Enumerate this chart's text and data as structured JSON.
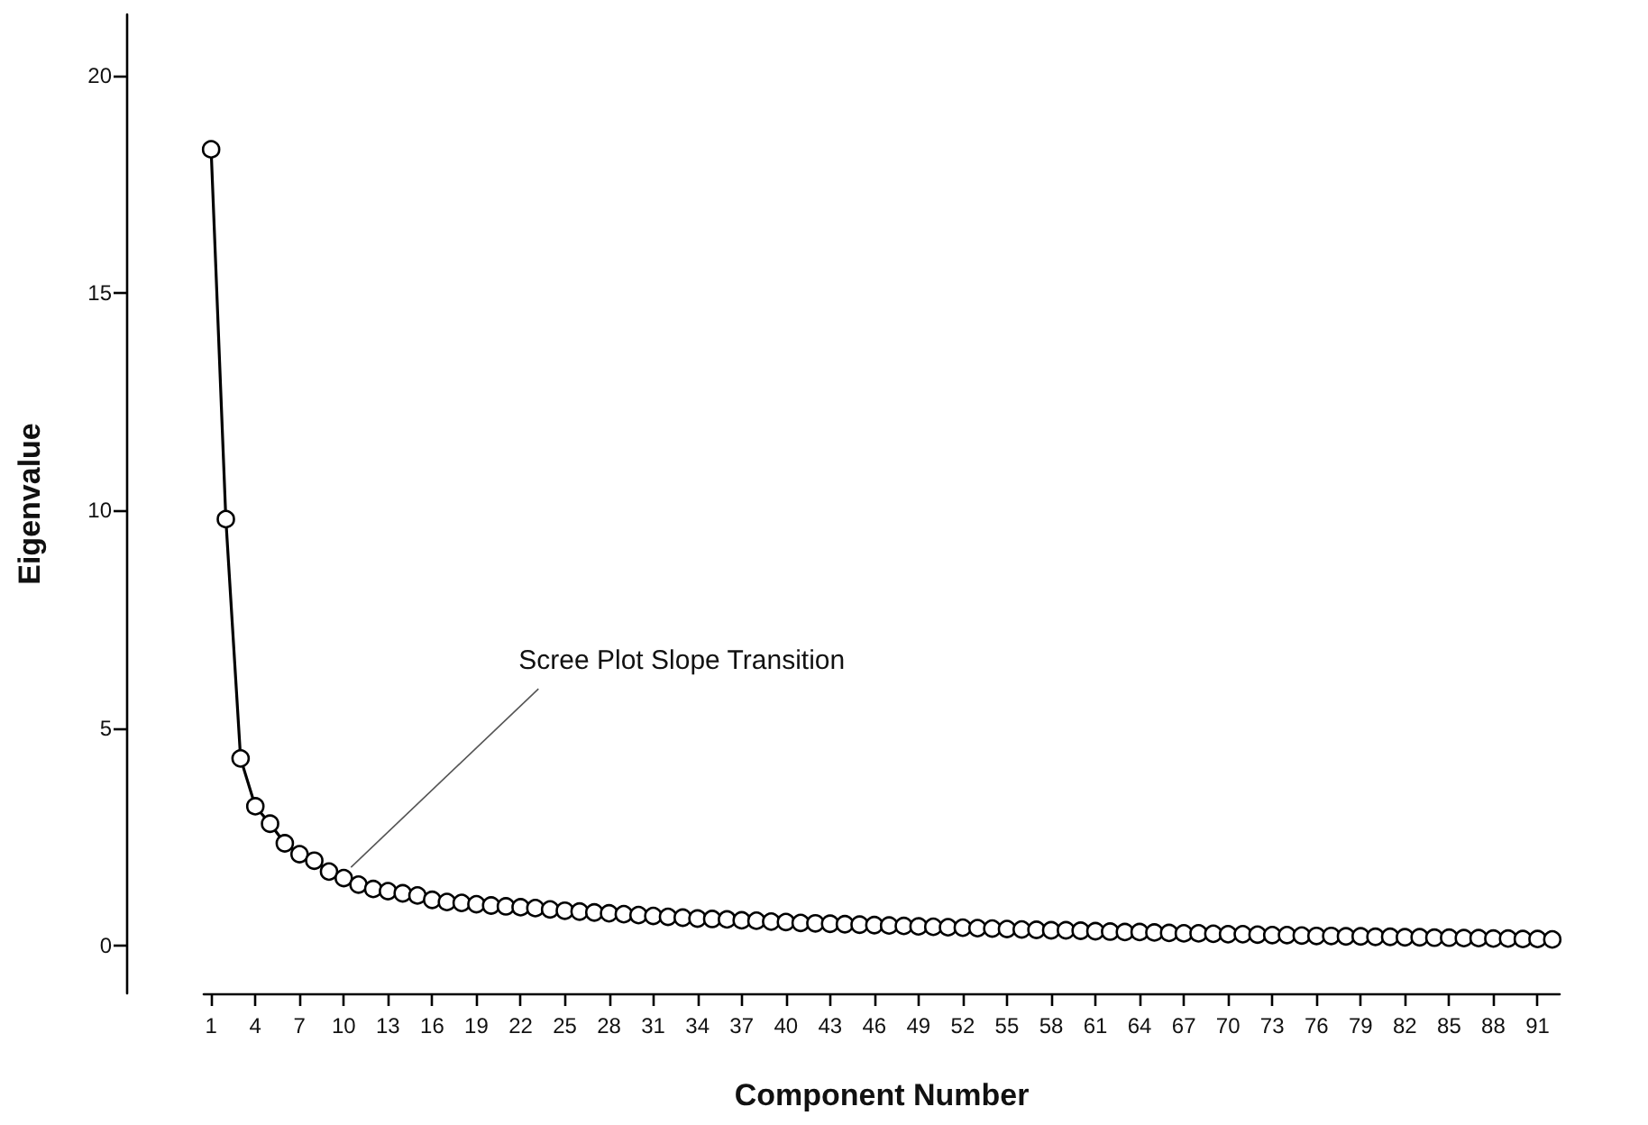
{
  "chart_data": {
    "type": "line",
    "xlabel": "Component Number",
    "ylabel": "Eigenvalue",
    "categories": [
      "1",
      null,
      null,
      "4",
      null,
      null,
      "7",
      null,
      null,
      "10",
      null,
      null,
      "13",
      null,
      null,
      "16",
      null,
      null,
      "19",
      null,
      null,
      "22",
      null,
      null,
      "25",
      null,
      null,
      "28",
      null,
      null,
      "31",
      null,
      null,
      "34",
      null,
      null,
      "37",
      null,
      null,
      "40",
      null,
      null,
      "43",
      null,
      null,
      "46",
      null,
      null,
      "49",
      null,
      null,
      "52",
      null,
      null,
      "55",
      null,
      null,
      "58",
      null,
      null,
      "61",
      null,
      null,
      "64",
      null,
      null,
      "67",
      null,
      null,
      "70",
      null,
      null,
      "73",
      null,
      null,
      "76",
      null,
      null,
      "79",
      null,
      null,
      "82",
      null,
      null,
      "85",
      null,
      null,
      "88",
      null,
      null,
      "91",
      null
    ],
    "series": [
      {
        "color": "#000000",
        "values": [
          18.3,
          9.8,
          4.3,
          3.2,
          2.8,
          2.35,
          2.1,
          1.95,
          1.7,
          1.55,
          1.4,
          1.3,
          1.25,
          1.2,
          1.15,
          1.05,
          1.0,
          0.98,
          0.95,
          0.92,
          0.9,
          0.88,
          0.86,
          0.83,
          0.8,
          0.78,
          0.76,
          0.74,
          0.72,
          0.7,
          0.68,
          0.66,
          0.64,
          0.62,
          0.61,
          0.6,
          0.58,
          0.57,
          0.55,
          0.54,
          0.52,
          0.51,
          0.5,
          0.49,
          0.48,
          0.47,
          0.46,
          0.45,
          0.44,
          0.43,
          0.42,
          0.41,
          0.4,
          0.39,
          0.38,
          0.37,
          0.36,
          0.35,
          0.35,
          0.34,
          0.33,
          0.32,
          0.31,
          0.31,
          0.3,
          0.29,
          0.28,
          0.28,
          0.27,
          0.26,
          0.26,
          0.25,
          0.24,
          0.24,
          0.23,
          0.22,
          0.22,
          0.21,
          0.21,
          0.2,
          0.2,
          0.19,
          0.19,
          0.18,
          0.18,
          0.17,
          0.17,
          0.16,
          0.16,
          0.15,
          0.15,
          0.14
        ]
      }
    ],
    "ylim": [
      -1.1,
      21.4
    ],
    "yticks": [
      0,
      5,
      10,
      15,
      20
    ],
    "annotations": [
      {
        "text": "Scree Plot Slope Transition",
        "x": "10",
        "y": 1.55
      }
    ],
    "marker": "circle",
    "line_style": "solid"
  }
}
